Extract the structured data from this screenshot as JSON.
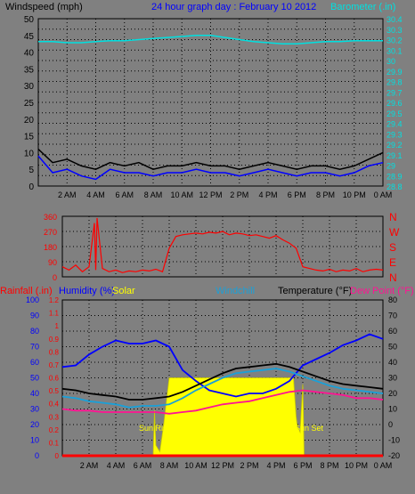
{
  "chart_data": [
    {
      "type": "line",
      "title": "24 hour graph day : February 10 2012",
      "ylabel_left": "Windspeed (mph)",
      "ylabel_right": "Barometer (.in)",
      "x_ticks": [
        "2 AM",
        "4 AM",
        "6 AM",
        "8 AM",
        "10 AM",
        "12 PM",
        "2 PM",
        "4 PM",
        "6 PM",
        "8 PM",
        "10 PM",
        "0 AM"
      ],
      "left_ticks": [
        "0",
        "5",
        "10",
        "15",
        "20",
        "25",
        "30",
        "35",
        "40",
        "45",
        "50"
      ],
      "left_range": [
        0,
        50
      ],
      "right_ticks": [
        "28.8",
        "28.9",
        "29",
        "29.1",
        "29.2",
        "29.3",
        "29.4",
        "29.5",
        "29.6",
        "29.7",
        "29.8",
        "29.9",
        "30",
        "30.1",
        "30.2",
        "30.3",
        "30.4"
      ],
      "right_range": [
        28.8,
        30.4
      ],
      "x_range_hours": [
        0,
        24
      ],
      "series": [
        {
          "name": "Barometer",
          "axis": "right",
          "color": "#00e0e0",
          "x": [
            0,
            1,
            2,
            3,
            4,
            5,
            6,
            7,
            8,
            9,
            10,
            11,
            12,
            13,
            14,
            15,
            16,
            17,
            18,
            19,
            20,
            21,
            22,
            23,
            24
          ],
          "values": [
            30.18,
            30.18,
            30.17,
            30.17,
            30.18,
            30.19,
            30.19,
            30.2,
            30.21,
            30.22,
            30.23,
            30.24,
            30.24,
            30.22,
            30.2,
            30.18,
            30.17,
            30.16,
            30.16,
            30.17,
            30.18,
            30.18,
            30.19,
            30.19,
            30.19
          ]
        },
        {
          "name": "Wind gust",
          "axis": "left",
          "color": "#000000",
          "x": [
            0,
            1,
            2,
            3,
            4,
            5,
            6,
            7,
            8,
            9,
            10,
            11,
            12,
            13,
            14,
            15,
            16,
            17,
            18,
            19,
            20,
            21,
            22,
            23,
            24
          ],
          "values": [
            11,
            7,
            8,
            6,
            5,
            7,
            6,
            7,
            5,
            6,
            6,
            7,
            6,
            6,
            5,
            6,
            7,
            6,
            5,
            6,
            6,
            5,
            6,
            8,
            10
          ]
        },
        {
          "name": "Wind average",
          "axis": "left",
          "color": "#0000ff",
          "x": [
            0,
            1,
            2,
            3,
            4,
            5,
            6,
            7,
            8,
            9,
            10,
            11,
            12,
            13,
            14,
            15,
            16,
            17,
            18,
            19,
            20,
            21,
            22,
            23,
            24
          ],
          "values": [
            9,
            4,
            5,
            3,
            2,
            5,
            4,
            4,
            3,
            4,
            4,
            5,
            4,
            4,
            3,
            4,
            5,
            4,
            3,
            4,
            4,
            3,
            4,
            6,
            7
          ]
        }
      ]
    },
    {
      "type": "line",
      "ylabel_right": [
        "N",
        "W",
        "S",
        "E",
        "N"
      ],
      "left_ticks": [
        "0",
        "90",
        "180",
        "270",
        "360"
      ],
      "left_range": [
        0,
        360
      ],
      "x_range_hours": [
        0,
        24
      ],
      "series": [
        {
          "name": "Wind direction",
          "color": "#ff0000",
          "x": [
            0,
            0.5,
            1,
            1.5,
            2,
            2.4,
            2.5,
            2.6,
            3,
            3.5,
            4,
            4.5,
            5,
            5.5,
            6,
            6.5,
            7,
            7.5,
            8,
            8.5,
            9,
            9.5,
            10,
            10.5,
            11,
            11.5,
            12,
            12.5,
            13,
            13.5,
            14,
            14.5,
            15,
            15.5,
            16,
            16.5,
            17,
            17.5,
            18,
            18.5,
            19,
            19.5,
            20,
            20.5,
            21,
            21.5,
            22,
            22.5,
            23,
            23.5,
            24
          ],
          "values": [
            60,
            40,
            70,
            30,
            60,
            320,
            40,
            350,
            50,
            30,
            40,
            25,
            35,
            30,
            40,
            35,
            45,
            30,
            170,
            240,
            250,
            255,
            260,
            255,
            265,
            260,
            270,
            250,
            260,
            255,
            245,
            250,
            240,
            230,
            245,
            220,
            200,
            170,
            60,
            50,
            40,
            35,
            45,
            30,
            40,
            35,
            50,
            30,
            40,
            45,
            40
          ]
        }
      ]
    },
    {
      "type": "line",
      "legend": [
        "Rainfall (.in)",
        "Humidity (%)",
        "Solar",
        "Windchill",
        "Temperature (°F)",
        "Dew Point (°F)"
      ],
      "left_ticks_rain": [
        "0",
        "0.1",
        "0.2",
        "0.3",
        "0.4",
        "0.5",
        "0.6",
        "0.7",
        "0.8",
        "0.9",
        "1",
        "1.1",
        "1.2"
      ],
      "left_range_rain": [
        0,
        1.2
      ],
      "left_ticks_humidity": [
        "0",
        "10",
        "20",
        "30",
        "40",
        "50",
        "60",
        "70",
        "80",
        "90",
        "100"
      ],
      "left_range_humidity": [
        0,
        100
      ],
      "right_ticks": [
        "-20",
        "-10",
        "0",
        "10",
        "20",
        "30",
        "40",
        "50",
        "60",
        "70",
        "80"
      ],
      "right_range": [
        -20,
        80
      ],
      "x_ticks": [
        "2 AM",
        "4 AM",
        "6 AM",
        "8 AM",
        "10 AM",
        "12 PM",
        "2 PM",
        "4 PM",
        "6 PM",
        "8 PM",
        "10 PM",
        "0 AM"
      ],
      "x_range_hours": [
        0,
        24
      ],
      "annotations": [
        "Sun Rise",
        "Sun Set"
      ],
      "series": [
        {
          "name": "Humidity",
          "axis": "humidity",
          "color": "#0000ff",
          "x": [
            0,
            1,
            2,
            3,
            4,
            5,
            6,
            7,
            8,
            9,
            10,
            11,
            12,
            13,
            14,
            15,
            16,
            17,
            18,
            19,
            20,
            21,
            22,
            23,
            24
          ],
          "values": [
            57,
            58,
            65,
            70,
            74,
            72,
            72,
            74,
            70,
            55,
            48,
            42,
            40,
            38,
            40,
            40,
            43,
            48,
            58,
            62,
            66,
            71,
            74,
            78,
            75
          ]
        },
        {
          "name": "Temperature",
          "axis": "right",
          "color": "#000000",
          "x": [
            0,
            1,
            2,
            3,
            4,
            5,
            6,
            7,
            8,
            9,
            10,
            11,
            12,
            13,
            14,
            15,
            16,
            17,
            18,
            19,
            20,
            21,
            22,
            23,
            24
          ],
          "values": [
            23,
            22,
            20,
            19,
            18,
            16,
            16,
            17,
            18,
            21,
            25,
            29,
            33,
            36,
            37,
            38,
            39,
            37,
            34,
            31,
            28,
            26,
            25,
            24,
            23
          ]
        },
        {
          "name": "Windchill",
          "axis": "right",
          "color": "#1aa0d8",
          "x": [
            0,
            1,
            2,
            3,
            4,
            5,
            6,
            7,
            8,
            9,
            10,
            11,
            12,
            13,
            14,
            15,
            16,
            17,
            18,
            19,
            20,
            21,
            22,
            23,
            24
          ],
          "values": [
            18,
            17,
            15,
            14,
            13,
            11,
            12,
            12,
            13,
            17,
            22,
            26,
            30,
            33,
            34,
            35,
            36,
            34,
            31,
            28,
            25,
            23,
            22,
            21,
            20
          ]
        },
        {
          "name": "Dew Point",
          "axis": "right",
          "color": "#ff1493",
          "x": [
            0,
            1,
            2,
            3,
            4,
            5,
            6,
            7,
            8,
            9,
            10,
            11,
            12,
            13,
            14,
            15,
            16,
            17,
            18,
            19,
            20,
            21,
            22,
            23,
            24
          ],
          "values": [
            10,
            9,
            9,
            8,
            8,
            8,
            8,
            8,
            7,
            8,
            9,
            11,
            13,
            14,
            15,
            17,
            19,
            21,
            22,
            21,
            20,
            19,
            17,
            17,
            16
          ]
        },
        {
          "name": "Solar",
          "axis": "rain",
          "color": "#ffff00",
          "x": [
            0,
            6.8,
            6.9,
            7.0,
            7.3,
            7.6,
            8,
            9,
            10,
            11,
            12,
            13,
            14,
            15,
            16,
            17.3,
            17.5,
            17.6,
            17.8,
            18,
            18.1,
            24
          ],
          "values": [
            0,
            0,
            0.35,
            0.08,
            0.03,
            0.25,
            0.6,
            0.6,
            0.6,
            0.6,
            0.6,
            0.6,
            0.6,
            0.6,
            0.6,
            0.6,
            0.3,
            0.22,
            0.18,
            0.55,
            0,
            0
          ]
        },
        {
          "name": "Rainfall",
          "axis": "rain",
          "color": "#ff0000",
          "x": [
            0,
            24
          ],
          "values": [
            0,
            0
          ]
        }
      ]
    }
  ],
  "colors": {
    "background": "#808080",
    "plot": "#808080",
    "grid": "#000000",
    "title": "#0000ff",
    "barometer": "#00e0e0",
    "wind_dir_axis": "#ff0000",
    "rain": "#ff0000",
    "humidity": "#0000ff",
    "solar": "#ffff00",
    "windchill": "#1aa0d8",
    "temperature": "#000000",
    "dewpoint": "#ff1493"
  }
}
